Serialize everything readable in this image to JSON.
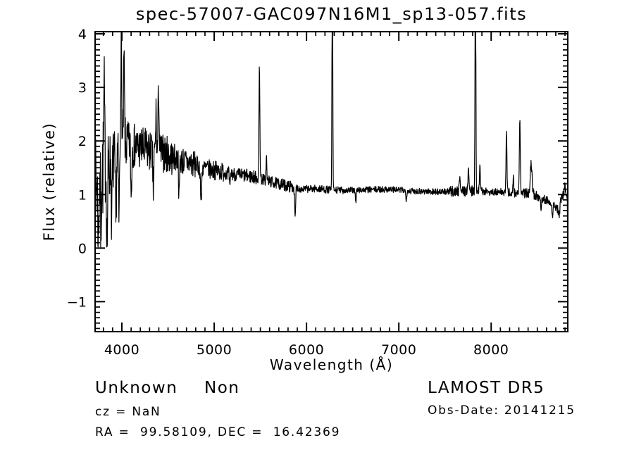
{
  "chart_data": {
    "type": "line",
    "title": "spec-57007-GAC097N16M1_sp13-057.fits",
    "xlabel": "Wavelength (Å)",
    "ylabel": "Flux (relative)",
    "xlim": [
      3710,
      8830
    ],
    "ylim": [
      -1.56,
      4.04
    ],
    "grid": false,
    "legend": "none",
    "line_color": "#000000",
    "background_color": "#ffffff",
    "x_major_ticks": [
      4000,
      5000,
      6000,
      7000,
      8000
    ],
    "x_tick_labels": [
      "4000",
      "5000",
      "6000",
      "7000",
      "8000"
    ],
    "x_minor_step": 100,
    "y_major_ticks": [
      -1,
      0,
      1,
      2,
      3,
      4
    ],
    "y_tick_labels": [
      "−1",
      "0",
      "1",
      "2",
      "3",
      "4"
    ],
    "y_minor_step": 0.1,
    "flux_floor": 0.02,
    "edge_values": [
      0.05,
      0.05
    ],
    "sample_step": 3,
    "noise_seed": 7,
    "continuum": [
      [
        3710,
        1.1
      ],
      [
        3760,
        1.35
      ],
      [
        3820,
        1.5
      ],
      [
        3880,
        1.58
      ],
      [
        3940,
        1.65
      ],
      [
        4000,
        1.85
      ],
      [
        4060,
        1.95
      ],
      [
        4150,
        1.9
      ],
      [
        4250,
        1.83
      ],
      [
        4350,
        1.8
      ],
      [
        4450,
        1.77
      ],
      [
        4550,
        1.7
      ],
      [
        4650,
        1.63
      ],
      [
        4750,
        1.58
      ],
      [
        4850,
        1.52
      ],
      [
        4950,
        1.47
      ],
      [
        5050,
        1.44
      ],
      [
        5150,
        1.4
      ],
      [
        5250,
        1.37
      ],
      [
        5350,
        1.35
      ],
      [
        5450,
        1.32
      ],
      [
        5550,
        1.27
      ],
      [
        5650,
        1.22
      ],
      [
        5750,
        1.18
      ],
      [
        5850,
        1.14
      ],
      [
        5950,
        1.1
      ],
      [
        6100,
        1.11
      ],
      [
        6300,
        1.08
      ],
      [
        6500,
        1.08
      ],
      [
        6700,
        1.09
      ],
      [
        6900,
        1.1
      ],
      [
        7100,
        1.07
      ],
      [
        7300,
        1.06
      ],
      [
        7500,
        1.05
      ],
      [
        7700,
        1.07
      ],
      [
        7900,
        1.06
      ],
      [
        8100,
        1.04
      ],
      [
        8250,
        1.03
      ],
      [
        8400,
        1.02
      ],
      [
        8500,
        0.97
      ],
      [
        8600,
        0.9
      ],
      [
        8680,
        0.82
      ],
      [
        8730,
        0.7
      ],
      [
        8760,
        0.92
      ],
      [
        8790,
        1.05
      ],
      [
        8815,
        0.95
      ],
      [
        8830,
        0.9
      ]
    ],
    "emission_peaks": [
      [
        3808,
        2.9,
        5
      ],
      [
        3992,
        3.9,
        6
      ],
      [
        4023,
        3.5,
        5
      ],
      [
        4370,
        2.55,
        4
      ],
      [
        4398,
        3.05,
        5
      ],
      [
        5490,
        3.38,
        5
      ],
      [
        5565,
        1.72,
        4
      ],
      [
        6280,
        6.5,
        4
      ],
      [
        7660,
        1.4,
        5
      ],
      [
        7755,
        1.5,
        5
      ],
      [
        7830,
        6.5,
        4
      ],
      [
        7878,
        1.55,
        5
      ],
      [
        8166,
        2.18,
        5
      ],
      [
        8240,
        1.32,
        4
      ],
      [
        8311,
        2.35,
        5
      ],
      [
        8433,
        1.58,
        10
      ],
      [
        8800,
        1.15,
        5
      ]
    ],
    "absorption_dips": [
      [
        3745,
        0.05,
        5
      ],
      [
        3772,
        0.3,
        4
      ],
      [
        3840,
        0.12,
        5
      ],
      [
        3890,
        0.45,
        4
      ],
      [
        3934,
        0.4,
        5
      ],
      [
        3969,
        0.55,
        5
      ],
      [
        4101,
        0.95,
        5
      ],
      [
        4340,
        1.05,
        5
      ],
      [
        4620,
        0.85,
        4
      ],
      [
        4858,
        0.85,
        6
      ],
      [
        5170,
        1.1,
        5
      ],
      [
        5877,
        0.52,
        5
      ],
      [
        6534,
        0.84,
        4
      ],
      [
        7080,
        0.92,
        5
      ],
      [
        8540,
        0.78,
        5
      ],
      [
        8665,
        0.6,
        5
      ],
      [
        8738,
        0.58,
        6
      ]
    ],
    "noise_regions": [
      [
        3710,
        3800,
        0.95
      ],
      [
        3800,
        3870,
        0.75
      ],
      [
        3870,
        3990,
        0.62
      ],
      [
        3990,
        4060,
        0.5
      ],
      [
        4060,
        4300,
        0.42
      ],
      [
        4300,
        4550,
        0.36
      ],
      [
        4550,
        4800,
        0.26
      ],
      [
        4800,
        5100,
        0.18
      ],
      [
        5100,
        5500,
        0.13
      ],
      [
        5500,
        5900,
        0.11
      ],
      [
        5900,
        6400,
        0.07
      ],
      [
        6400,
        7550,
        0.06
      ],
      [
        7550,
        7820,
        0.1
      ],
      [
        7820,
        8100,
        0.07
      ],
      [
        8100,
        8350,
        0.08
      ],
      [
        8350,
        8600,
        0.09
      ],
      [
        8600,
        8830,
        0.08
      ]
    ]
  },
  "annotations": {
    "class_label": "Unknown",
    "subclass_label": "Non",
    "cz_line": "cz = NaN",
    "radec_line": "RA =  99.58109, DEC =  16.42369",
    "survey_label": "LAMOST DR5",
    "obsdate_line": "Obs-Date: 20141215"
  },
  "colors": {
    "foreground": "#000000",
    "background": "#ffffff"
  }
}
